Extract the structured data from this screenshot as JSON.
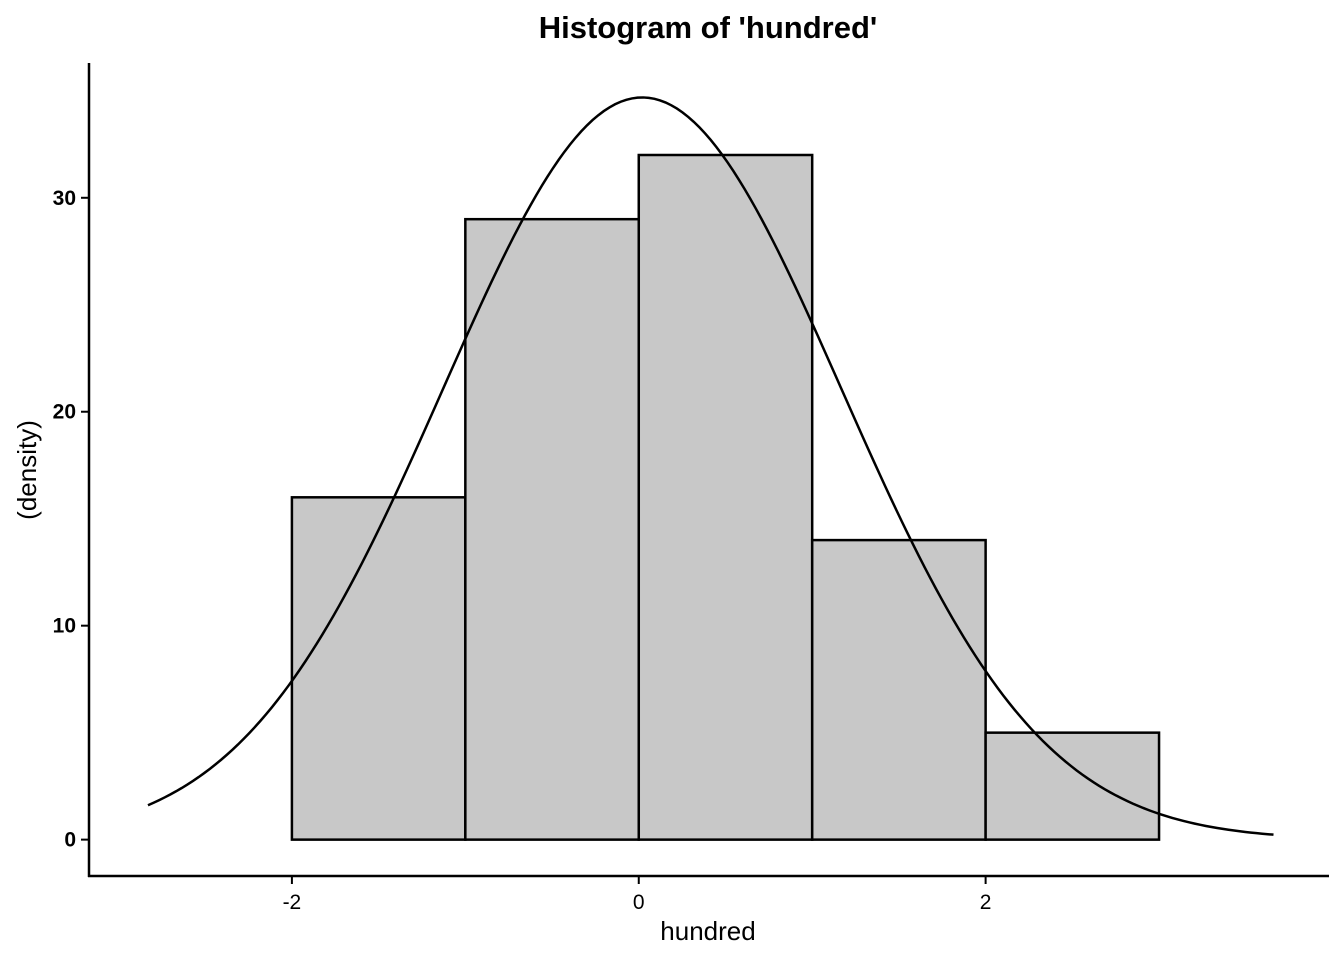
{
  "chart_data": {
    "type": "bar",
    "title": "Histogram of 'hundred'",
    "xlabel": "hundred",
    "ylabel": "(density)",
    "bins": [
      {
        "x0": -2,
        "x1": -1,
        "value": 16
      },
      {
        "x0": -1,
        "x1": 0,
        "value": 29
      },
      {
        "x0": 0,
        "x1": 1,
        "value": 32
      },
      {
        "x0": 1,
        "x1": 2,
        "value": 14
      },
      {
        "x0": 2,
        "x1": 3,
        "value": 5
      }
    ],
    "xticks": [
      -2,
      0,
      2
    ],
    "xtick_labels": [
      "-2",
      "0",
      "2"
    ],
    "yticks": [
      0,
      10,
      20,
      30
    ],
    "ytick_labels": [
      "0",
      "10",
      "20",
      "30"
    ],
    "xlim": [
      -3.17,
      3.98
    ],
    "ylim": [
      -1.7,
      36.3
    ],
    "curve": {
      "type": "normal-density",
      "mean": 0.02,
      "sd": 1.15,
      "scale": 100,
      "x_range": [
        -2.83,
        3.66
      ]
    },
    "grid": false,
    "colors": {
      "bar_fill": "#c8c8c8",
      "bar_stroke": "#000000",
      "curve": "#000000"
    }
  }
}
